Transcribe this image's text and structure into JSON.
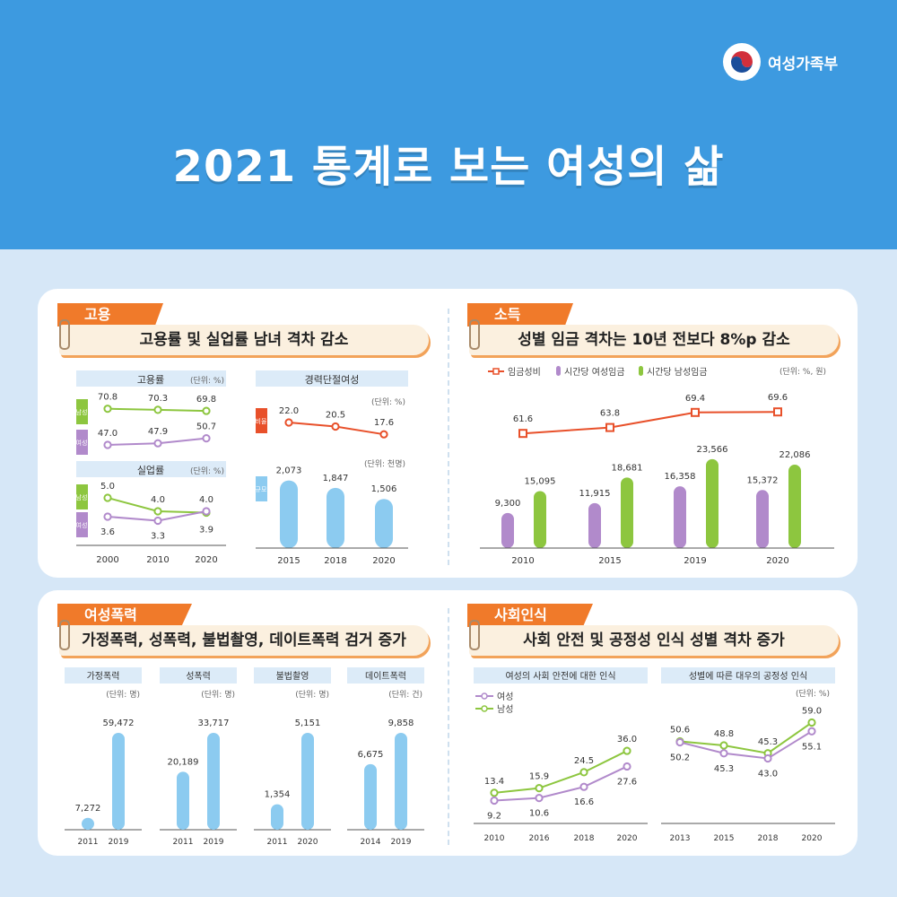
{
  "header": {
    "org_name": "여성가족부",
    "title": "2021 통계로 보는 여성의 삶"
  },
  "employment": {
    "tag": "고용",
    "headline": "고용률 및 실업률 남녀 격차 감소",
    "employment_rate": {
      "title": "고용률",
      "unit": "(단위: %)"
    },
    "unemployment_rate": {
      "title": "실업률",
      "unit": "(단위: %)"
    },
    "career_break": {
      "title": "경력단절여성",
      "ratio_unit": "(단위: %)",
      "size_unit": "(단위: 천명)",
      "ratio_tag": "비율",
      "size_tag": "규모"
    },
    "male_tag": "남성",
    "female_tag": "여성"
  },
  "income": {
    "tag": "소득",
    "headline": "성별 임금 격차는 10년 전보다 8%p 감소",
    "legend": [
      "임금성비",
      "시간당 여성임금",
      "시간당 남성임금"
    ],
    "unit": "(단위: %, 원)"
  },
  "violence": {
    "tag": "여성폭력",
    "headline": "가정폭력, 성폭력, 불법촬영, 데이트폭력 검거 증가"
  },
  "perception": {
    "tag": "사회인식",
    "headline": "사회 안전 및 공정성 인식 성별 격차 증가",
    "safety_title": "여성의 사회 안전에 대한 인식",
    "fairness_title": "성별에 따른 대우의 공정성 인식",
    "legend": [
      "여성",
      "남성"
    ],
    "unit": "(단위: %)"
  },
  "colors": {
    "male": "#8dc63f",
    "female": "#b18acb",
    "bar": "#8ccbf0",
    "ratio": "#e8502a",
    "tag": "#f07a2a",
    "header": "#3d9ae0"
  },
  "chart_data": [
    {
      "id": "employment_rate",
      "type": "line",
      "title": "고용률",
      "x": [
        "2000",
        "2010",
        "2020"
      ],
      "series": [
        {
          "name": "남성",
          "values": [
            70.8,
            70.3,
            69.8
          ]
        },
        {
          "name": "여성",
          "values": [
            47.0,
            47.9,
            50.7
          ]
        }
      ]
    },
    {
      "id": "unemployment_rate",
      "type": "line",
      "title": "실업률",
      "x": [
        "2000",
        "2010",
        "2020"
      ],
      "series": [
        {
          "name": "남성",
          "values": [
            5.0,
            4.0,
            3.9
          ]
        },
        {
          "name": "여성",
          "values": [
            3.6,
            3.3,
            4.0
          ]
        }
      ]
    },
    {
      "id": "career_break_ratio",
      "type": "line",
      "title": "경력단절여성",
      "x": [
        "2015",
        "2018",
        "2020"
      ],
      "series": [
        {
          "name": "비율",
          "values": [
            22.0,
            20.5,
            17.6
          ]
        }
      ]
    },
    {
      "id": "career_break_size",
      "type": "bar",
      "categories": [
        "2015",
        "2018",
        "2020"
      ],
      "values": [
        2073,
        1847,
        1506
      ],
      "labels": [
        "2,073",
        "1,847",
        "1,506"
      ]
    },
    {
      "id": "wage",
      "type": "bar",
      "categories": [
        "2010",
        "2015",
        "2019",
        "2020"
      ],
      "series": [
        {
          "name": "시간당 여성임금",
          "values": [
            9300,
            11915,
            16358,
            15372
          ],
          "labels": [
            "9,300",
            "11,915",
            "16,358",
            "15,372"
          ]
        },
        {
          "name": "시간당 남성임금",
          "values": [
            15095,
            18681,
            23566,
            22086
          ],
          "labels": [
            "15,095",
            "18,681",
            "23,566",
            "22,086"
          ]
        }
      ],
      "line": {
        "name": "임금성비",
        "values": [
          61.6,
          63.8,
          69.4,
          69.6
        ]
      }
    },
    {
      "id": "domestic_violence",
      "type": "bar",
      "title": "가정폭력",
      "unit": "(단위: 명)",
      "categories": [
        "2011",
        "2019"
      ],
      "values": [
        7272,
        59472
      ],
      "labels": [
        "7,272",
        "59,472"
      ]
    },
    {
      "id": "sexual_violence",
      "type": "bar",
      "title": "성폭력",
      "unit": "(단위: 명)",
      "categories": [
        "2011",
        "2019"
      ],
      "values": [
        20189,
        33717
      ],
      "labels": [
        "20,189",
        "33,717"
      ]
    },
    {
      "id": "illegal_filming",
      "type": "bar",
      "title": "불법촬영",
      "unit": "(단위: 명)",
      "categories": [
        "2011",
        "2020"
      ],
      "values": [
        1354,
        5151
      ],
      "labels": [
        "1,354",
        "5,151"
      ]
    },
    {
      "id": "dating_violence",
      "type": "bar",
      "title": "데이트폭력",
      "unit": "(단위: 건)",
      "categories": [
        "2014",
        "2019"
      ],
      "values": [
        6675,
        9858
      ],
      "labels": [
        "6,675",
        "9,858"
      ]
    },
    {
      "id": "safety",
      "type": "line",
      "title": "여성의 사회 안전에 대한 인식",
      "x": [
        "2010",
        "2016",
        "2018",
        "2020"
      ],
      "series": [
        {
          "name": "여성",
          "values": [
            9.2,
            10.6,
            16.6,
            27.6
          ]
        },
        {
          "name": "남성",
          "values": [
            13.4,
            15.9,
            24.5,
            36.0
          ]
        }
      ]
    },
    {
      "id": "fairness",
      "type": "line",
      "title": "성별에 따른 대우의 공정성 인식",
      "x": [
        "2013",
        "2015",
        "2018",
        "2020"
      ],
      "series": [
        {
          "name": "여성",
          "values": [
            50.2,
            45.3,
            43.0,
            55.1
          ]
        },
        {
          "name": "남성",
          "values": [
            50.6,
            48.8,
            45.3,
            59.0
          ]
        }
      ]
    }
  ]
}
